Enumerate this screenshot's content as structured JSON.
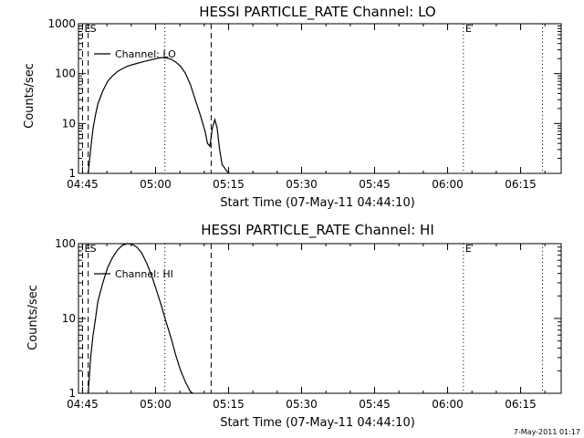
{
  "footer": {
    "stamp": "7-May-2011 01:17"
  },
  "chart_data": [
    {
      "type": "line",
      "title": "HESSI PARTICLE_RATE Channel: LO",
      "xlabel": "Start Time (07-May-11 04:44:10)",
      "ylabel": "Counts/sec",
      "y_scale": "log",
      "ylim": [
        1,
        1000
      ],
      "xlim": [
        "04:44:10",
        "06:23:20"
      ],
      "x_ticks": [
        "04:45",
        "05:00",
        "05:15",
        "05:30",
        "05:45",
        "06:00",
        "06:15"
      ],
      "y_ticks": [
        "1",
        "10",
        "100",
        "1000"
      ],
      "grid": false,
      "legend": "top-left",
      "series": [
        {
          "name": "Channel: LO",
          "x": [
            "04:46:10",
            "04:46:40",
            "04:47:10",
            "04:47:40",
            "04:48:10",
            "04:49:10",
            "04:50:10",
            "04:51:10",
            "04:52:10",
            "04:53:10",
            "04:54:10",
            "04:55:10",
            "04:56:10",
            "04:57:10",
            "04:58:10",
            "04:59:10",
            "05:00:10",
            "05:00:40",
            "05:01:10",
            "05:02:10",
            "05:03:10",
            "05:04:10",
            "05:05:10",
            "05:06:10",
            "05:07:10",
            "05:08:10",
            "05:09:10",
            "05:10:10",
            "05:10:40",
            "05:11:10",
            "05:11:40",
            "05:12:10",
            "05:12:40",
            "05:13:10",
            "05:13:40",
            "05:14:10",
            "05:14:40",
            "05:15:10"
          ],
          "values": [
            1,
            3,
            8,
            15,
            25,
            45,
            70,
            90,
            110,
            125,
            140,
            150,
            160,
            170,
            180,
            190,
            200,
            205,
            210,
            205,
            195,
            170,
            140,
            100,
            60,
            30,
            15,
            7,
            4,
            3.5,
            8,
            12,
            8,
            3,
            1.5,
            1.3,
            1.1,
            1
          ]
        }
      ],
      "markers": [
        {
          "label": "E",
          "style": "dashed",
          "x": "04:45:00"
        },
        {
          "label": "S",
          "style": "dashed",
          "x": "04:46:10"
        },
        {
          "label": "",
          "style": "dotted",
          "x": "05:01:55"
        },
        {
          "label": "",
          "style": "dashed",
          "x": "05:11:25"
        },
        {
          "label": "E",
          "style": "dotted",
          "x": "06:03:15"
        },
        {
          "label": "",
          "style": "dotted",
          "x": "06:19:30"
        }
      ]
    },
    {
      "type": "line",
      "title": "HESSI PARTICLE_RATE Channel: HI",
      "xlabel": "Start Time (07-May-11 04:44:10)",
      "ylabel": "Counts/sec",
      "y_scale": "log",
      "ylim": [
        1,
        100
      ],
      "xlim": [
        "04:44:10",
        "06:23:20"
      ],
      "x_ticks": [
        "04:45",
        "05:00",
        "05:15",
        "05:30",
        "05:45",
        "06:00",
        "06:15"
      ],
      "y_ticks": [
        "1",
        "10",
        "100"
      ],
      "grid": false,
      "legend": "top-left",
      "series": [
        {
          "name": "Channel: HI",
          "x": [
            "04:46:10",
            "04:46:40",
            "04:47:10",
            "04:47:40",
            "04:48:10",
            "04:49:10",
            "04:50:10",
            "04:51:10",
            "04:52:10",
            "04:53:10",
            "04:54:10",
            "04:55:10",
            "04:56:10",
            "04:57:10",
            "04:58:10",
            "04:59:10",
            "05:00:10",
            "05:01:10",
            "05:02:10",
            "05:03:10",
            "05:04:10",
            "05:05:10",
            "05:06:10",
            "05:07:10",
            "05:07:40"
          ],
          "values": [
            1,
            3,
            6,
            10,
            17,
            30,
            48,
            65,
            82,
            95,
            100,
            98,
            90,
            75,
            55,
            38,
            24,
            15,
            9,
            5.5,
            3.2,
            2,
            1.4,
            1.05,
            1
          ]
        }
      ],
      "markers": [
        {
          "label": "E",
          "style": "dashed",
          "x": "04:45:00"
        },
        {
          "label": "S",
          "style": "dashed",
          "x": "04:46:10"
        },
        {
          "label": "",
          "style": "dotted",
          "x": "05:01:55"
        },
        {
          "label": "",
          "style": "dashed",
          "x": "05:11:25"
        },
        {
          "label": "E",
          "style": "dotted",
          "x": "06:03:15"
        },
        {
          "label": "",
          "style": "dotted",
          "x": "06:19:30"
        }
      ]
    }
  ]
}
